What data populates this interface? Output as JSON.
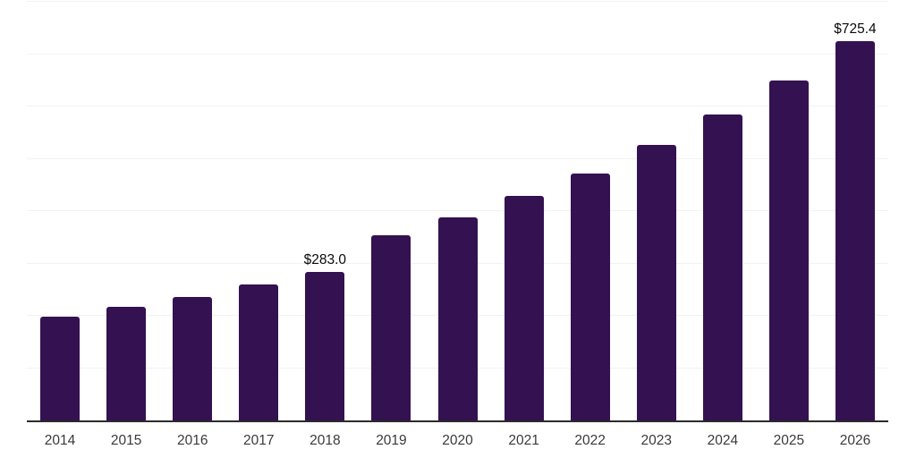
{
  "chart_data": {
    "type": "bar",
    "title": "",
    "categories": [
      "2014",
      "2015",
      "2016",
      "2017",
      "2018",
      "2019",
      "2020",
      "2021",
      "2022",
      "2023",
      "2024",
      "2025",
      "2026"
    ],
    "values": [
      198.4,
      216.7,
      236.5,
      259.4,
      283.0,
      353.3,
      388.6,
      428.4,
      472.4,
      525.9,
      584.2,
      650.3,
      725.4
    ],
    "labeled_points": [
      {
        "category": "2018",
        "label": "$283.0"
      },
      {
        "category": "2026",
        "label": "$725.4"
      }
    ],
    "xlabel": "",
    "ylabel": "",
    "ylim": [
      0,
      800
    ],
    "grid_step": 100,
    "grid": true,
    "y_tick_labels_visible": false,
    "legend_position": "none"
  },
  "colors": {
    "background": "#ffffff",
    "bar": "#341150",
    "grid": "#f2f2f2",
    "axis": "#2b2b2b",
    "label_text": "#0a0a0a",
    "tick_text": "#3a3a3a"
  }
}
